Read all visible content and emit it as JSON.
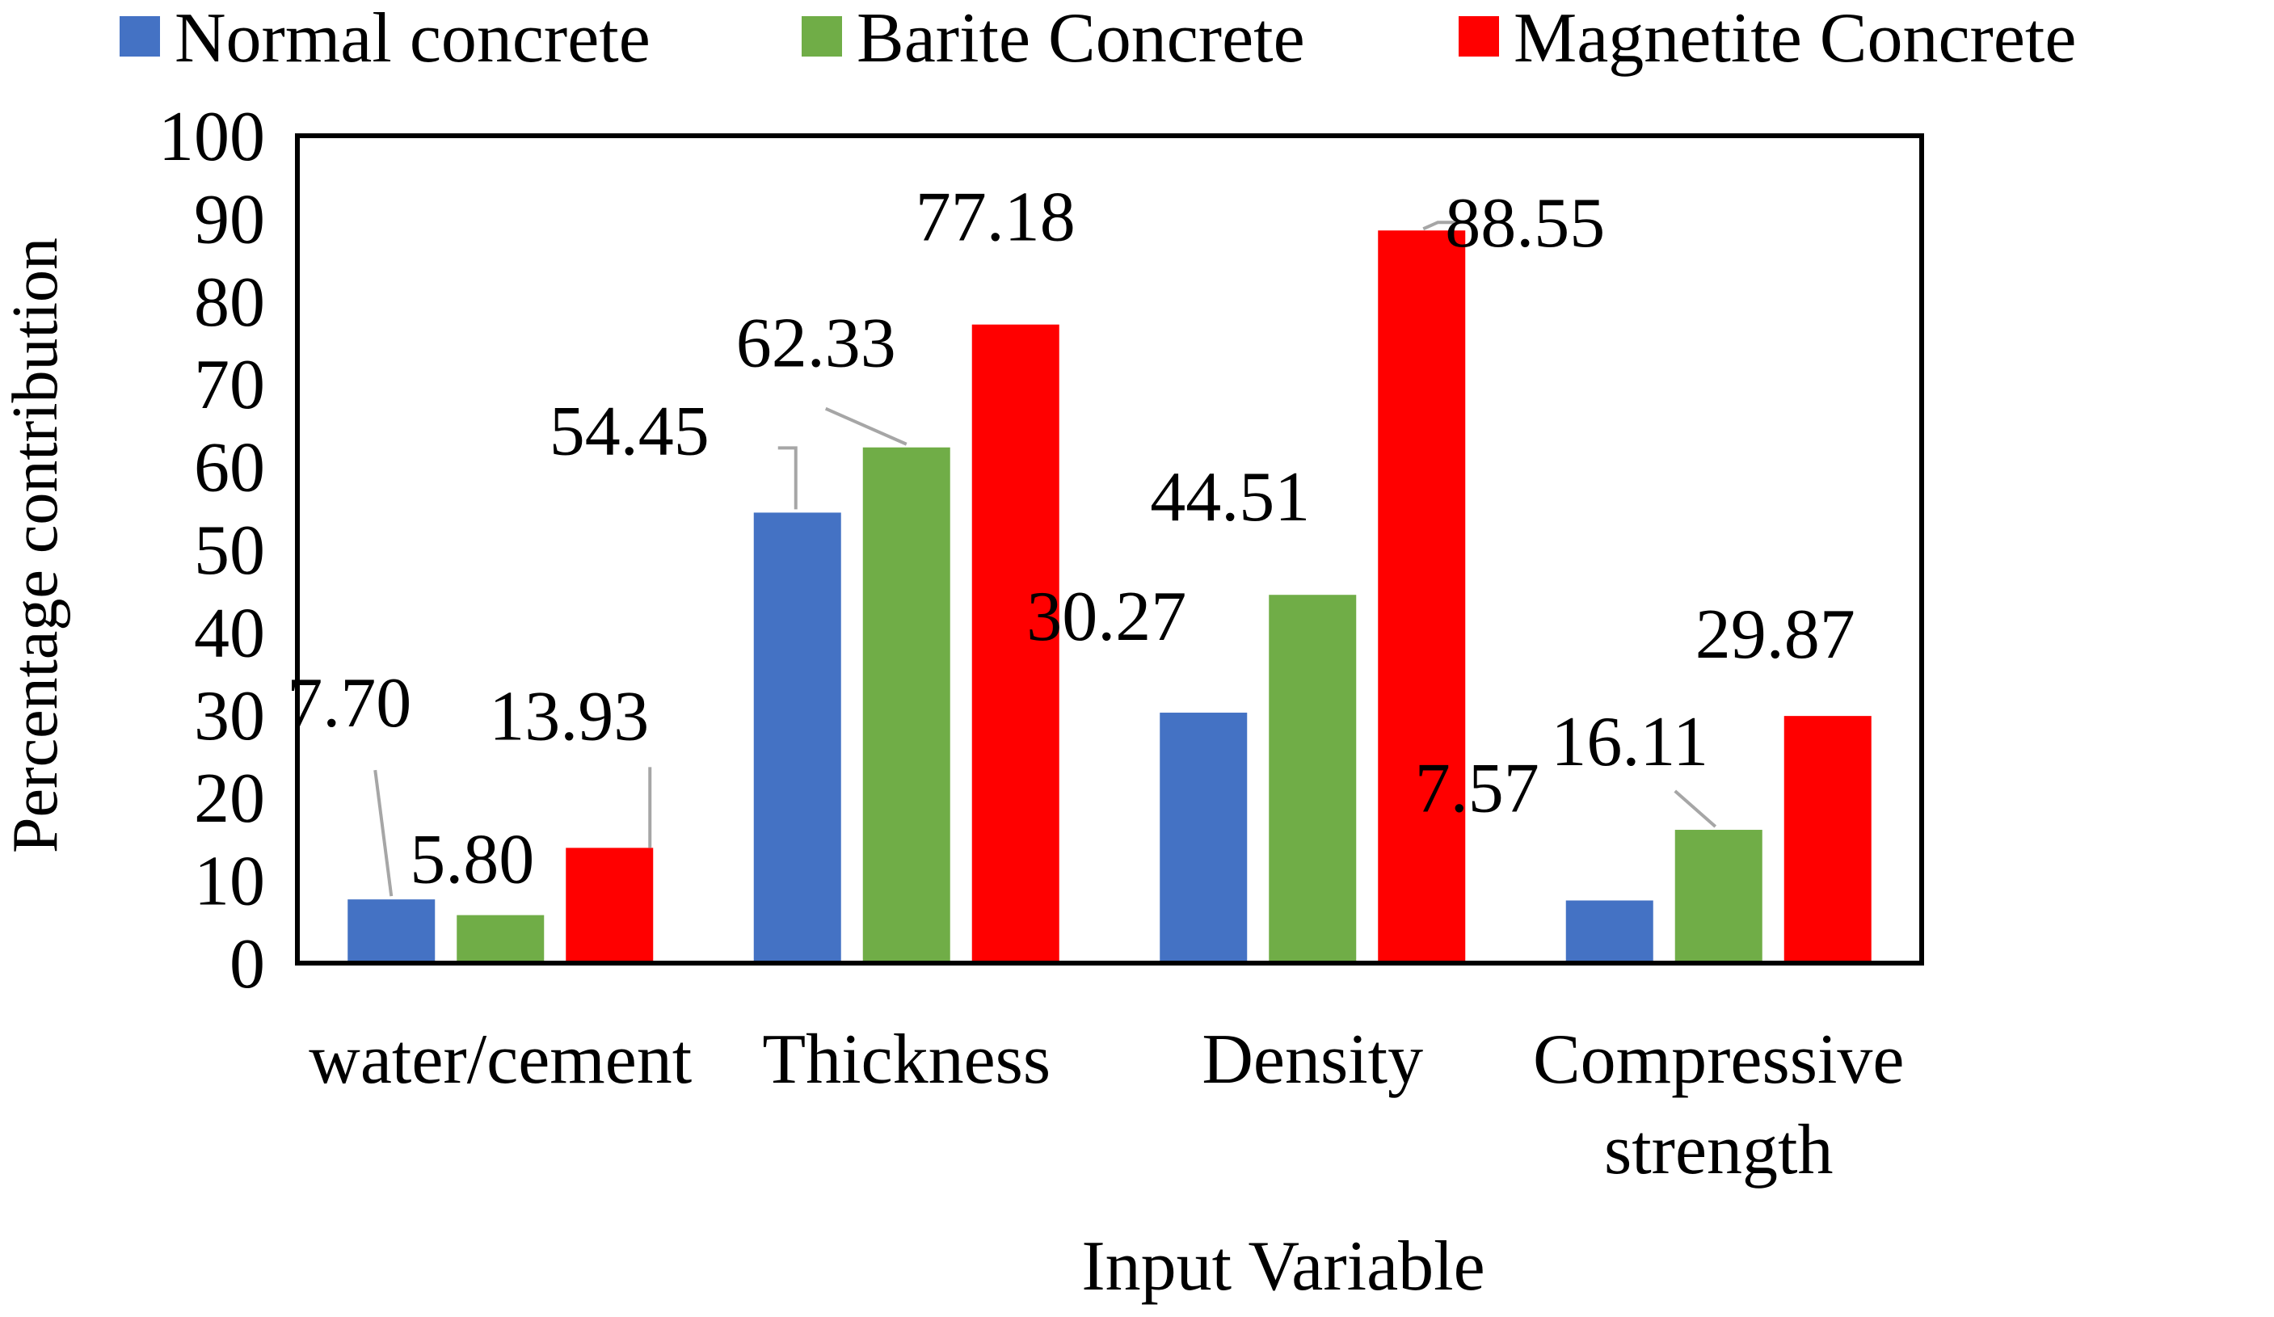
{
  "chart_data": {
    "type": "bar",
    "title": "",
    "xlabel": "Input Variable",
    "ylabel": "Percentage contribution",
    "ylim": [
      0,
      100
    ],
    "yticks": [
      0,
      10,
      20,
      30,
      40,
      50,
      60,
      70,
      80,
      90,
      100
    ],
    "ytick_labels": [
      "0",
      "10",
      "20",
      "30",
      "40",
      "50",
      "60",
      "70",
      "80",
      "90",
      "100"
    ],
    "grid": false,
    "legend_position": "top",
    "categories": [
      [
        "water/cement"
      ],
      [
        "Thickness"
      ],
      [
        "Density"
      ],
      [
        "Compressive",
        "strength"
      ]
    ],
    "series": [
      {
        "name": "Normal concrete",
        "color": "#4472c4",
        "values": [
          7.7,
          54.45,
          30.27,
          7.57
        ],
        "labels": [
          "7.70",
          "54.45",
          "30.27",
          "7.57"
        ]
      },
      {
        "name": "Barite Concrete",
        "color": "#70ad47",
        "values": [
          5.8,
          62.33,
          44.51,
          16.11
        ],
        "labels": [
          "5.80",
          "62.33",
          "44.51",
          "16.11"
        ]
      },
      {
        "name": "Magnetite Concrete",
        "color": "#ff0000",
        "values": [
          13.93,
          77.18,
          88.55,
          29.87
        ],
        "labels": [
          "13.93",
          "77.18",
          "88.55",
          "29.87"
        ]
      }
    ]
  }
}
